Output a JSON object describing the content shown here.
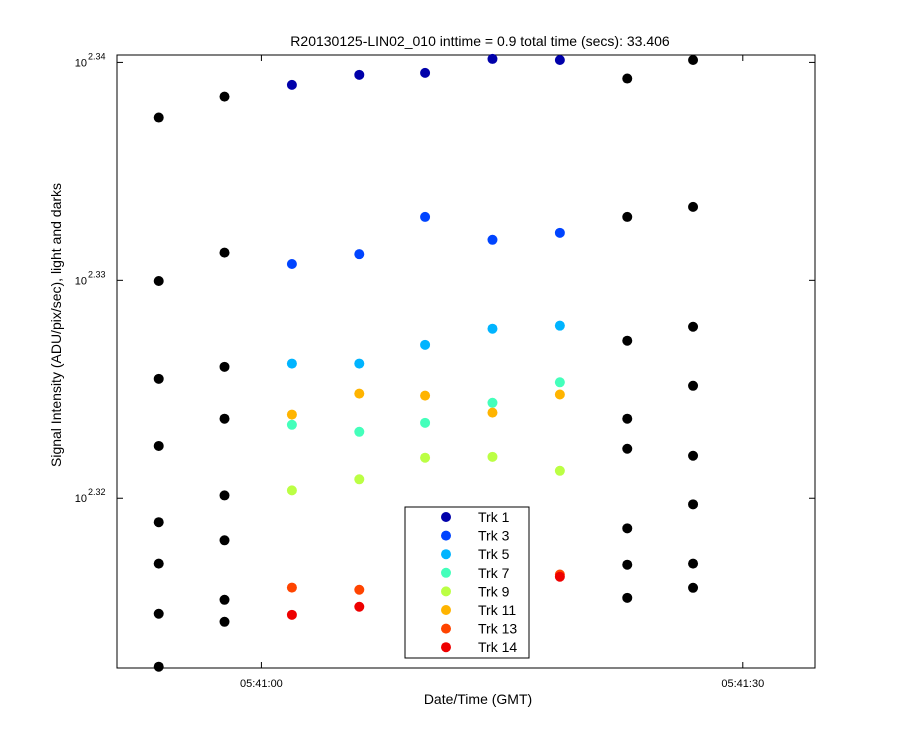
{
  "chart_data": {
    "type": "scatter",
    "title": "R20130125-LIN02_010 inttime = 0.9 total time (secs): 33.406",
    "xlabel": "Date/Time (GMT)",
    "ylabel": "Signal Intensity (ADU/pix/sec), light and darks",
    "y_scale": "log",
    "x_ticks": [
      {
        "t": 0,
        "label": "05:41:00"
      },
      {
        "t": 30,
        "label": "05:41:30"
      }
    ],
    "y_ticks": [
      {
        "exp": 2.32,
        "base": "10",
        "sup": "2.32"
      },
      {
        "exp": 2.33,
        "base": "10",
        "sup": "2.33"
      },
      {
        "exp": 2.34,
        "base": "10",
        "sup": "2.34"
      }
    ],
    "xlim_seconds": [
      -9,
      34.5
    ],
    "ylim_log10": [
      2.31221,
      2.34034
    ],
    "legend_position": "bottom-center",
    "grid": false,
    "series": [
      {
        "name": "Trk 1",
        "color": "#0000aa",
        "points": [
          [
            1.9,
            2.33897
          ],
          [
            6.1,
            2.33943
          ],
          [
            10.2,
            2.33952
          ],
          [
            14.4,
            2.34016
          ],
          [
            18.6,
            2.34011
          ]
        ]
      },
      {
        "name": "Trk 3",
        "color": "#0044ff",
        "points": [
          [
            1.9,
            2.33075
          ],
          [
            6.1,
            2.3312
          ],
          [
            10.2,
            2.33291
          ],
          [
            14.4,
            2.33186
          ],
          [
            18.6,
            2.33218
          ]
        ]
      },
      {
        "name": "Trk 5",
        "color": "#00b4ff",
        "points": [
          [
            1.9,
            2.32618
          ],
          [
            6.1,
            2.32618
          ],
          [
            10.2,
            2.32704
          ],
          [
            14.4,
            2.32778
          ],
          [
            18.6,
            2.32792
          ]
        ]
      },
      {
        "name": "Trk 7",
        "color": "#44ffbb",
        "points": [
          [
            1.9,
            2.32337
          ],
          [
            6.1,
            2.32305
          ],
          [
            10.2,
            2.32346
          ],
          [
            14.4,
            2.32438
          ],
          [
            18.6,
            2.32532
          ]
        ]
      },
      {
        "name": "Trk 9",
        "color": "#bbff44",
        "points": [
          [
            1.9,
            2.32036
          ],
          [
            6.1,
            2.32087
          ],
          [
            10.2,
            2.32186
          ],
          [
            14.4,
            2.3219
          ],
          [
            18.6,
            2.32126
          ]
        ]
      },
      {
        "name": "Trk 11",
        "color": "#ffb400",
        "points": [
          [
            1.9,
            2.32384
          ],
          [
            6.1,
            2.3248
          ],
          [
            10.2,
            2.32471
          ],
          [
            14.4,
            2.32393
          ],
          [
            18.6,
            2.32476
          ]
        ]
      },
      {
        "name": "Trk 13",
        "color": "#ff4400",
        "points": [
          [
            1.9,
            2.3159
          ],
          [
            6.1,
            2.3158
          ],
          [
            18.6,
            2.3165
          ]
        ]
      },
      {
        "name": "Trk 14",
        "color": "#ee0000",
        "points": [
          [
            1.9,
            2.31465
          ],
          [
            6.1,
            2.31502
          ],
          [
            18.6,
            2.3164
          ]
        ]
      }
    ],
    "darks": {
      "color": "#000000",
      "points": [
        [
          -6.4,
          2.33747
        ],
        [
          -6.4,
          2.32997
        ],
        [
          -6.4,
          2.32548
        ],
        [
          -6.4,
          2.3224
        ],
        [
          -6.4,
          2.3189
        ],
        [
          -6.4,
          2.317
        ],
        [
          -6.4,
          2.3147
        ],
        [
          -6.4,
          2.31227
        ],
        [
          -2.3,
          2.33843
        ],
        [
          -2.3,
          2.33127
        ],
        [
          -2.3,
          2.32603
        ],
        [
          -2.3,
          2.32365
        ],
        [
          -2.3,
          2.32013
        ],
        [
          -2.3,
          2.31807
        ],
        [
          -2.3,
          2.31534
        ],
        [
          -2.3,
          2.31433
        ],
        [
          22.8,
          2.33926
        ],
        [
          22.8,
          2.33291
        ],
        [
          22.8,
          2.32723
        ],
        [
          22.8,
          2.32365
        ],
        [
          22.8,
          2.32227
        ],
        [
          22.8,
          2.31862
        ],
        [
          22.8,
          2.31695
        ],
        [
          22.8,
          2.31543
        ],
        [
          26.9,
          2.34011
        ],
        [
          26.9,
          2.33337
        ],
        [
          26.9,
          2.32787
        ],
        [
          26.9,
          2.32516
        ],
        [
          26.9,
          2.32195
        ],
        [
          26.9,
          2.31972
        ],
        [
          26.9,
          2.317
        ],
        [
          26.9,
          2.31589
        ]
      ]
    }
  }
}
